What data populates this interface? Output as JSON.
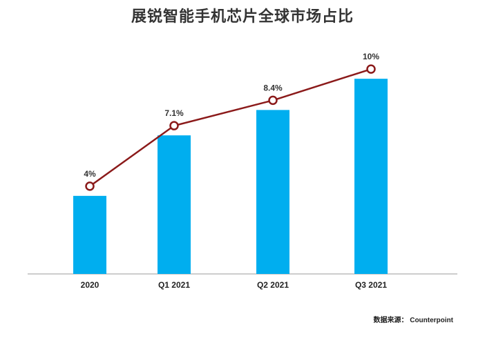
{
  "chart_data": {
    "type": "bar",
    "title": "展锐智能手机芯片全球市场占比",
    "categories": [
      "2020",
      "Q1 2021",
      "Q2 2021",
      "Q3 2021"
    ],
    "values": [
      4,
      7.1,
      8.4,
      10
    ],
    "data_labels": [
      "4%",
      "7.1%",
      "8.4%",
      "10%"
    ],
    "line_overlay": true,
    "ylim": [
      0,
      10.5
    ],
    "xlabel": "",
    "ylabel": "",
    "grid": false,
    "colors": {
      "bar": "#00aeef",
      "line": "#8b1a1a",
      "marker_fill": "#ffffff",
      "axis": "#999999"
    }
  },
  "source": "数据来源： Counterpoint"
}
